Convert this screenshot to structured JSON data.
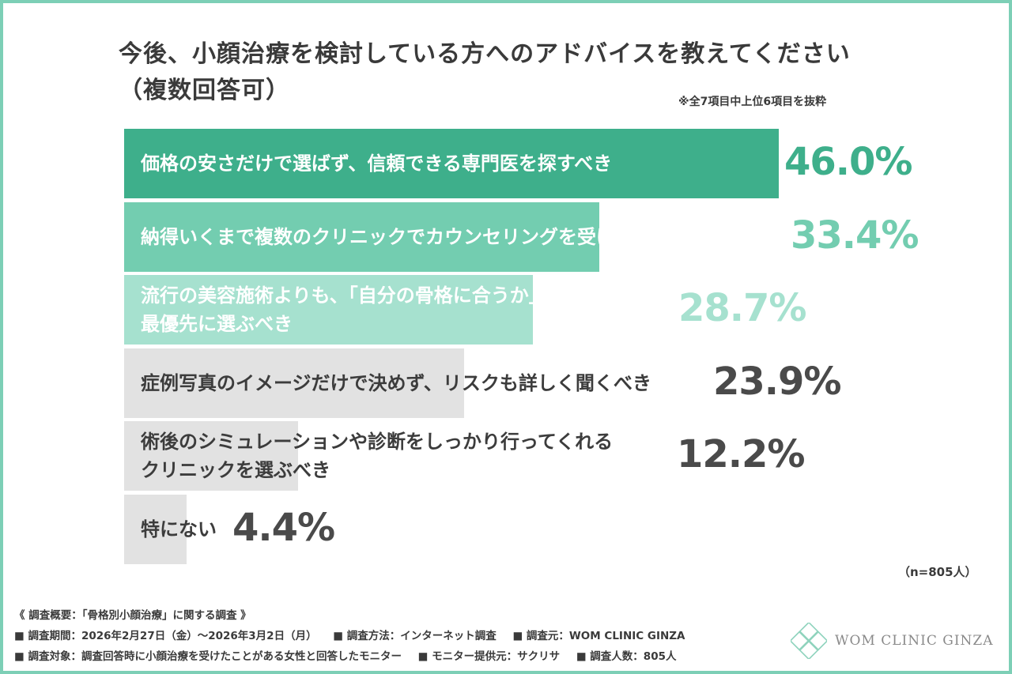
{
  "title": "今後、小顔治療を検討している方へのアドバイスを教えてください\n（複数回答可）",
  "note": "※全7項目中上位6項目を抜粋",
  "n_label": "（n=805人）",
  "footer": {
    "heading": "《 調査概要：「骨格別小顔治療」に関する調査 》",
    "period": "■ 調査期間：2026年2月27日（金）〜2026年3月2日（月）",
    "method": "■ 調査方法：インターネット調査",
    "source": "■ 調査元：WOM CLINIC GINZA",
    "target": "■ 調査対象：調査回答時に小顔治療を受けたことがある女性と回答したモニター",
    "provider": "■ モニター提供元：サクリサ",
    "count": "■ 調査人数：805人"
  },
  "logo": {
    "text": "WOM CLINIC GINZA",
    "icon": "diamond-lattice-icon"
  },
  "colors": [
    "#3eaf8b",
    "#73cdb0",
    "#a6e1cf",
    "#e2e2e2",
    "#e2e2e2",
    "#e2e2e2"
  ],
  "chart_data": {
    "type": "bar",
    "orientation": "horizontal",
    "categories": [
      "価格の安さだけで選ばず、信頼できる専門医を探すべき",
      "納得いくまで複数のクリニックでカウンセリングを受けるべき",
      "流行の美容施術よりも、「自分の骨格に合うか」を\n最優先に選ぶべき",
      "症例写真のイメージだけで決めず、リスクも詳しく聞くべき",
      "術後のシミュレーションや診断をしっかり行ってくれる\nクリニックを選ぶべき",
      "特にない"
    ],
    "values": [
      46.0,
      33.4,
      28.7,
      23.9,
      12.2,
      4.4
    ],
    "value_labels": [
      "46.0%",
      "33.4%",
      "28.7%",
      "23.9%",
      "12.2%",
      "4.4%"
    ],
    "unit": "%"
  }
}
